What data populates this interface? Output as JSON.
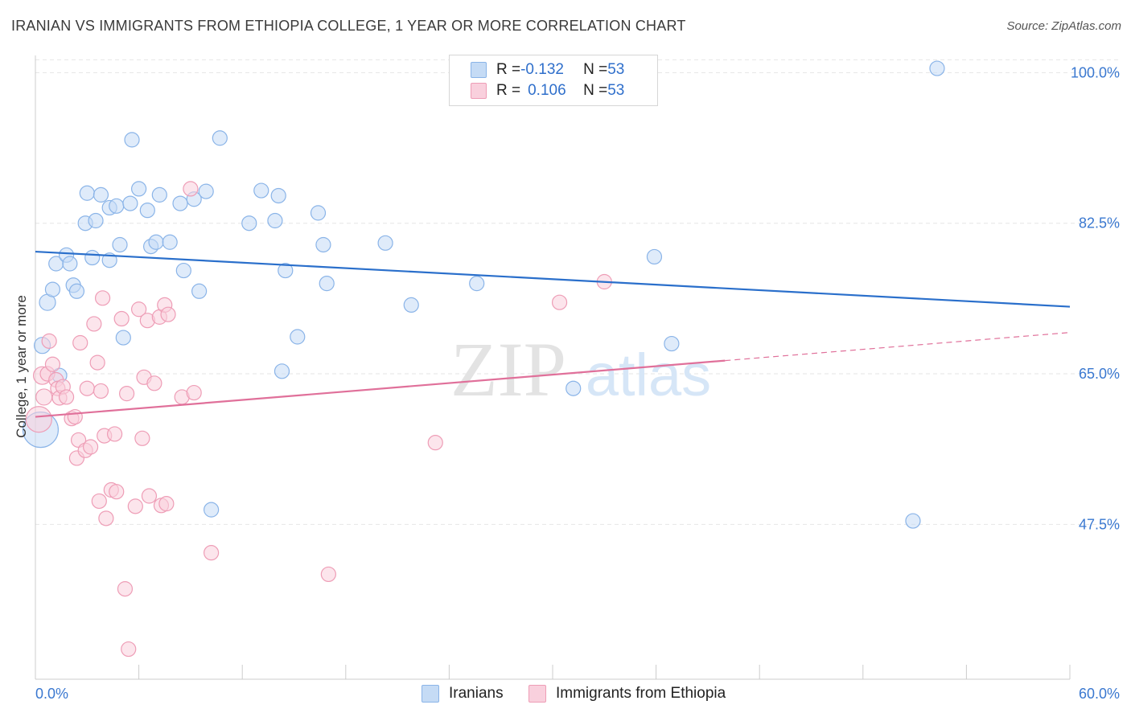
{
  "title": "IRANIAN VS IMMIGRANTS FROM ETHIOPIA COLLEGE, 1 YEAR OR MORE CORRELATION CHART",
  "source": "Source: ZipAtlas.com",
  "watermark": {
    "zip": "ZIP",
    "atlas": "atlas"
  },
  "legend_top": {
    "rows": [
      {
        "r_label": "R = ",
        "r_value": "-0.132",
        "n_label": "N = ",
        "n_value": "53"
      },
      {
        "r_label": "R = ",
        "r_value": "0.106",
        "n_label": "N = ",
        "n_value": "53"
      }
    ]
  },
  "chart_data": {
    "type": "scatter",
    "title": "IRANIAN VS IMMIGRANTS FROM ETHIOPIA COLLEGE, 1 YEAR OR MORE CORRELATION CHART",
    "xlabel": "",
    "ylabel": "College, 1 year or more",
    "xlim": [
      0,
      60
    ],
    "ylim": [
      29.5,
      102
    ],
    "x_tick_labels": [
      "0.0%",
      "60.0%"
    ],
    "y_ticks": [
      47.5,
      65.0,
      82.5,
      100.0
    ],
    "y_tick_labels": [
      "47.5%",
      "65.0%",
      "82.5%",
      "100.0%"
    ],
    "grid": true,
    "legend_position": "top-center",
    "series": [
      {
        "name": "Iranians",
        "color": "#8ab4e8",
        "fill": "#c5dbf5",
        "trend_color": "#2a6fcb",
        "trend": {
          "x0": 0,
          "y0": 79.2,
          "x1": 60,
          "y1": 72.8,
          "dashed_from": null
        },
        "points": [
          [
            0.3,
            58.5
          ],
          [
            0.4,
            68.3
          ],
          [
            0.7,
            73.3
          ],
          [
            1.0,
            74.8
          ],
          [
            1.2,
            77.8
          ],
          [
            1.4,
            64.8
          ],
          [
            1.8,
            78.8
          ],
          [
            2.0,
            77.8
          ],
          [
            2.2,
            75.3
          ],
          [
            2.4,
            74.6
          ],
          [
            2.9,
            82.5
          ],
          [
            3.0,
            86.0
          ],
          [
            3.3,
            78.5
          ],
          [
            3.5,
            82.8
          ],
          [
            3.8,
            85.8
          ],
          [
            4.3,
            78.2
          ],
          [
            4.3,
            84.3
          ],
          [
            4.7,
            84.5
          ],
          [
            4.9,
            80.0
          ],
          [
            5.1,
            69.2
          ],
          [
            5.5,
            84.8
          ],
          [
            5.6,
            92.2
          ],
          [
            6.0,
            86.5
          ],
          [
            6.5,
            84.0
          ],
          [
            6.7,
            79.8
          ],
          [
            7.0,
            80.3
          ],
          [
            7.2,
            85.8
          ],
          [
            7.8,
            80.3
          ],
          [
            8.4,
            84.8
          ],
          [
            8.6,
            77.0
          ],
          [
            9.2,
            85.3
          ],
          [
            9.5,
            74.6
          ],
          [
            9.9,
            86.2
          ],
          [
            10.2,
            49.2
          ],
          [
            10.7,
            92.4
          ],
          [
            12.4,
            82.5
          ],
          [
            13.1,
            86.3
          ],
          [
            13.9,
            82.8
          ],
          [
            14.1,
            85.7
          ],
          [
            14.3,
            65.3
          ],
          [
            14.5,
            77.0
          ],
          [
            15.2,
            69.3
          ],
          [
            16.4,
            83.7
          ],
          [
            16.7,
            80.0
          ],
          [
            16.9,
            75.5
          ],
          [
            20.3,
            80.2
          ],
          [
            21.8,
            73.0
          ],
          [
            25.6,
            75.5
          ],
          [
            31.2,
            63.3
          ],
          [
            35.9,
            78.6
          ],
          [
            36.9,
            68.5
          ],
          [
            50.9,
            47.9
          ],
          [
            52.3,
            100.5
          ]
        ],
        "point_sizes": [
          22,
          10,
          10,
          9,
          9,
          9,
          9,
          9,
          9,
          9,
          9,
          9,
          9,
          9,
          9,
          9,
          9,
          9,
          9,
          9,
          9,
          9,
          9,
          9,
          9,
          9,
          9,
          9,
          9,
          9,
          9,
          9,
          9,
          9,
          9,
          9,
          9,
          9,
          9,
          9,
          9,
          9,
          9,
          9,
          9,
          9,
          9,
          9,
          9,
          9,
          9,
          9,
          9
        ]
      },
      {
        "name": "Immigrants from Ethiopia",
        "color": "#ee9db6",
        "fill": "#f9d0dd",
        "trend_color": "#e0709a",
        "trend": {
          "x0": 0,
          "y0": 60.0,
          "x1": 60,
          "y1": 69.8,
          "dashed_from": 40.0
        },
        "points": [
          [
            0.2,
            59.7
          ],
          [
            0.4,
            64.8
          ],
          [
            0.5,
            62.3
          ],
          [
            0.7,
            65.0
          ],
          [
            0.8,
            68.8
          ],
          [
            1.0,
            66.1
          ],
          [
            1.2,
            64.3
          ],
          [
            1.3,
            63.3
          ],
          [
            1.4,
            62.2
          ],
          [
            1.6,
            63.5
          ],
          [
            1.8,
            62.3
          ],
          [
            2.1,
            59.8
          ],
          [
            2.3,
            60.0
          ],
          [
            2.4,
            55.2
          ],
          [
            2.5,
            57.3
          ],
          [
            2.6,
            68.6
          ],
          [
            2.9,
            56.1
          ],
          [
            3.0,
            63.3
          ],
          [
            3.2,
            56.5
          ],
          [
            3.4,
            70.8
          ],
          [
            3.6,
            66.3
          ],
          [
            3.7,
            50.2
          ],
          [
            3.8,
            63.0
          ],
          [
            3.9,
            73.8
          ],
          [
            4.0,
            57.8
          ],
          [
            4.1,
            48.2
          ],
          [
            4.4,
            51.5
          ],
          [
            4.6,
            58.0
          ],
          [
            4.7,
            51.3
          ],
          [
            5.0,
            71.4
          ],
          [
            5.2,
            40.0
          ],
          [
            5.3,
            62.7
          ],
          [
            5.4,
            33.0
          ],
          [
            5.8,
            49.6
          ],
          [
            6.0,
            72.5
          ],
          [
            6.2,
            57.5
          ],
          [
            6.3,
            64.6
          ],
          [
            6.5,
            71.2
          ],
          [
            6.6,
            50.8
          ],
          [
            6.9,
            63.9
          ],
          [
            7.2,
            71.6
          ],
          [
            7.3,
            49.7
          ],
          [
            7.5,
            73.0
          ],
          [
            7.6,
            49.9
          ],
          [
            7.7,
            71.9
          ],
          [
            8.5,
            62.3
          ],
          [
            9.0,
            86.5
          ],
          [
            9.2,
            62.8
          ],
          [
            10.2,
            44.2
          ],
          [
            17.0,
            41.7
          ],
          [
            23.2,
            57.0
          ],
          [
            30.4,
            73.3
          ],
          [
            33.0,
            75.7
          ]
        ],
        "point_sizes": [
          16,
          11,
          10,
          9,
          9,
          9,
          9,
          9,
          9,
          9,
          9,
          9,
          9,
          9,
          9,
          9,
          9,
          9,
          9,
          9,
          9,
          9,
          9,
          9,
          9,
          9,
          9,
          9,
          9,
          9,
          9,
          9,
          9,
          9,
          9,
          9,
          9,
          9,
          9,
          9,
          9,
          9,
          9,
          9,
          9,
          9,
          9,
          9,
          9,
          9,
          9,
          9,
          9
        ]
      }
    ]
  },
  "colors": {
    "axis_tick_blue": "#3a78d0",
    "grid": "#e6e6e6",
    "axis": "#cccccc",
    "watermark_zip": "#e3e3e3",
    "watermark_atlas": "#d6e6f7"
  }
}
